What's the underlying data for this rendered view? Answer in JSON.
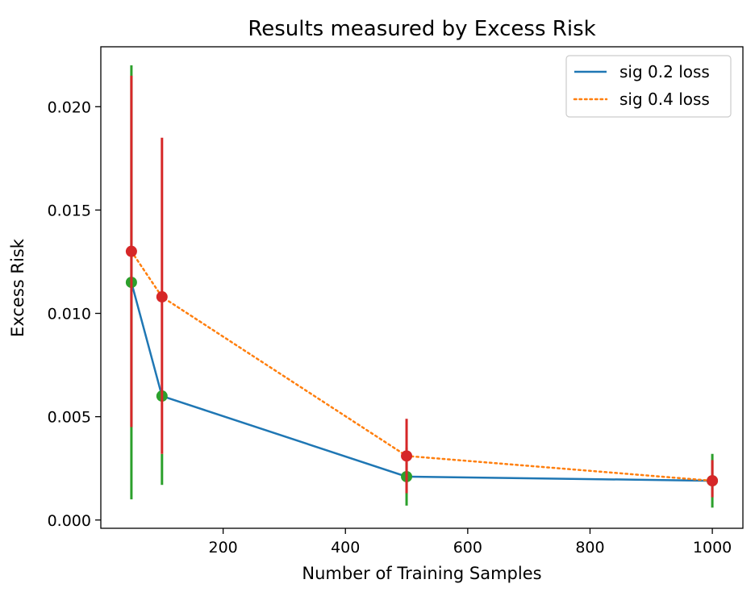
{
  "chart_data": {
    "type": "line",
    "title": "Results measured by Excess Risk",
    "xlabel": "Number of Training Samples",
    "ylabel": "Excess Risk",
    "xlim": [
      0,
      1050
    ],
    "ylim": [
      -0.0004,
      0.0229
    ],
    "xticks": [
      200,
      400,
      600,
      800,
      1000
    ],
    "xtick_labels": [
      "200",
      "400",
      "600",
      "800",
      "1000"
    ],
    "yticks": [
      0.0,
      0.005,
      0.01,
      0.015,
      0.02
    ],
    "ytick_labels": [
      "0.000",
      "0.005",
      "0.010",
      "0.015",
      "0.020"
    ],
    "grid": false,
    "legend_position": "top-right",
    "series": [
      {
        "name": "sig 0.2 loss",
        "line_style": "solid",
        "color": "#1f77b4",
        "marker_color": "#2ca02c",
        "x": [
          50,
          100,
          500,
          1000
        ],
        "y": [
          0.0115,
          0.006,
          0.0021,
          0.0019
        ],
        "error_low": [
          0.001,
          0.0017,
          0.0007,
          0.0006
        ],
        "error_high": [
          0.022,
          0.0032,
          0.0035,
          0.0032
        ]
      },
      {
        "name": "sig 0.4 loss",
        "line_style": "dotted",
        "color": "#ff7f0e",
        "marker_color": "#d62728",
        "x": [
          50,
          100,
          500,
          1000
        ],
        "y": [
          0.013,
          0.0108,
          0.0031,
          0.0019
        ],
        "error_low": [
          0.0045,
          0.0032,
          0.0013,
          0.0011
        ],
        "error_high": [
          0.0215,
          0.0185,
          0.0049,
          0.0029
        ]
      }
    ]
  }
}
